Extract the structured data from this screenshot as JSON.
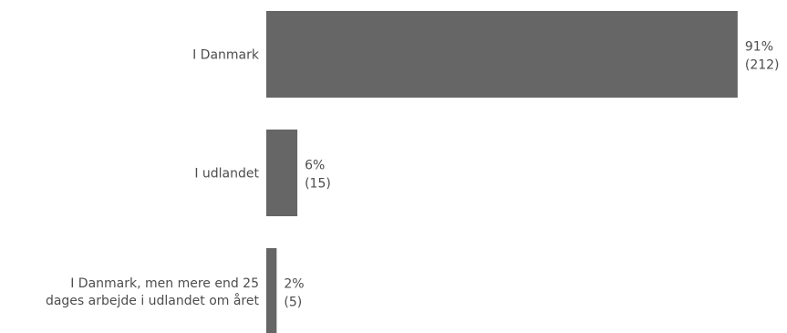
{
  "chart_data": {
    "type": "bar",
    "orientation": "horizontal",
    "categories": [
      [
        "I Danmark"
      ],
      [
        "I udlandet"
      ],
      [
        "I Danmark, men mere end 25",
        "dages arbejde i udlandet om året"
      ]
    ],
    "values": [
      91,
      6,
      2
    ],
    "value_labels": [
      "91%",
      "6%",
      "2%"
    ],
    "count_labels": [
      "(212)",
      "(15)",
      "(5)"
    ],
    "xlim": [
      0,
      100
    ],
    "title": "",
    "xlabel": "",
    "ylabel": "",
    "grid": false,
    "legend": "none",
    "bar_color": "#666666"
  }
}
